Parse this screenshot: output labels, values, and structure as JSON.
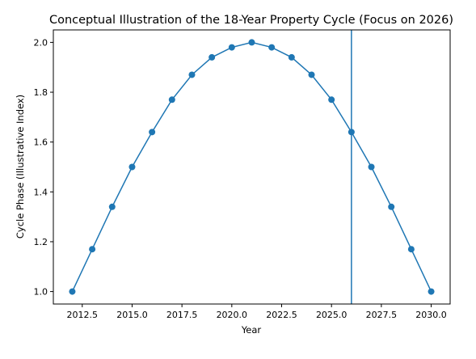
{
  "chart_data": {
    "type": "line",
    "title": "Conceptual Illustration of the 18-Year Property Cycle (Focus on 2026)",
    "xlabel": "Year",
    "ylabel": "Cycle Phase (Illustrative Index)",
    "xlim": [
      2011.05,
      2030.95
    ],
    "ylim": [
      0.95,
      2.05
    ],
    "xticks": [
      2012.5,
      2015.0,
      2017.5,
      2020.0,
      2022.5,
      2025.0,
      2027.5,
      2030.0
    ],
    "xtick_labels": [
      "2012.5",
      "2015.0",
      "2017.5",
      "2020.0",
      "2022.5",
      "2025.0",
      "2027.5",
      "2030.0"
    ],
    "yticks": [
      1.0,
      1.2,
      1.4,
      1.6,
      1.8,
      2.0
    ],
    "ytick_labels": [
      "1.0",
      "1.2",
      "1.4",
      "1.6",
      "1.8",
      "2.0"
    ],
    "grid": false,
    "series": [
      {
        "color": "#1f77b4",
        "marker": "circle",
        "x": [
          2012,
          2013,
          2014,
          2015,
          2016,
          2017,
          2018,
          2019,
          2020,
          2021,
          2022,
          2023,
          2024,
          2025,
          2026,
          2027,
          2028,
          2029,
          2030
        ],
        "y": [
          1.0,
          1.17,
          1.34,
          1.5,
          1.64,
          1.77,
          1.87,
          1.94,
          1.98,
          2.0,
          1.98,
          1.94,
          1.87,
          1.77,
          1.64,
          1.5,
          1.34,
          1.17,
          1.0
        ]
      }
    ],
    "vline": {
      "x": 2026,
      "color": "#1f77b4"
    }
  }
}
